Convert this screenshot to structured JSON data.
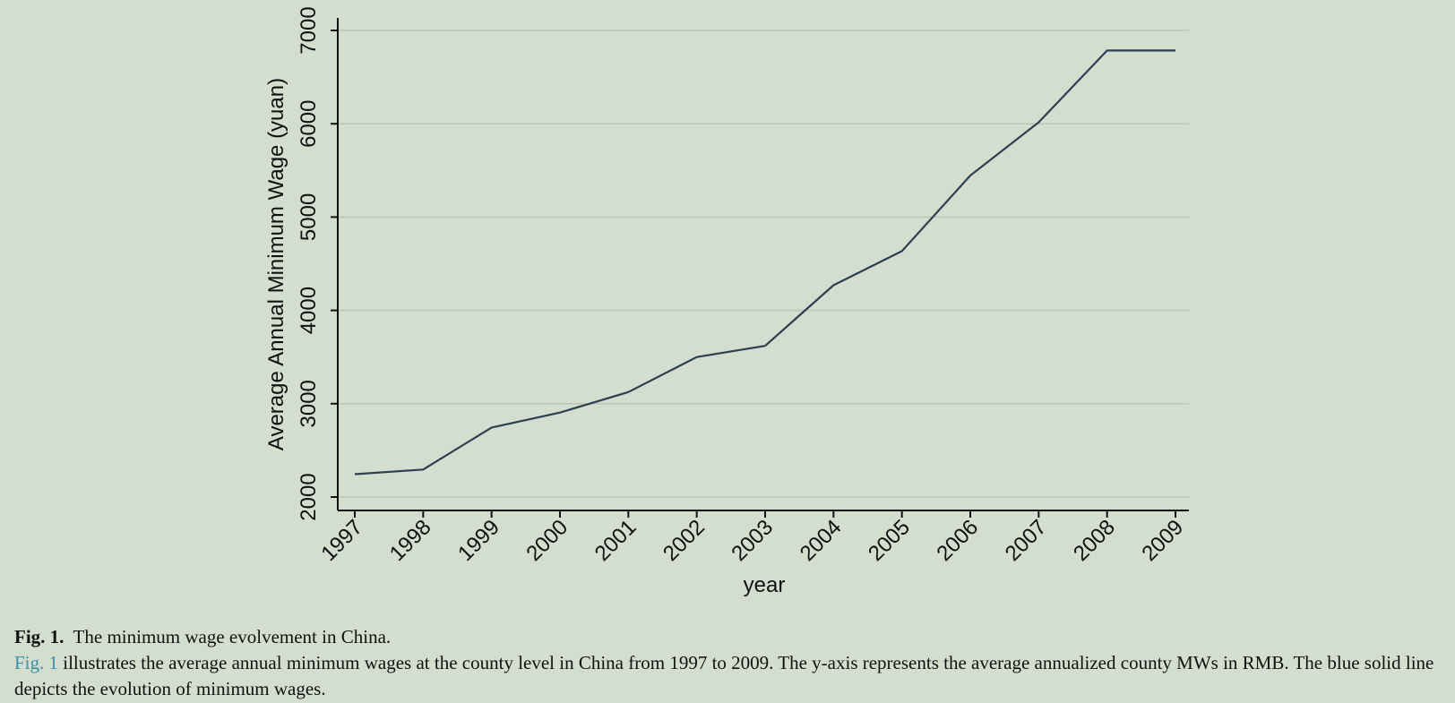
{
  "chart_data": {
    "type": "line",
    "x": [
      1997,
      1998,
      1999,
      2000,
      2001,
      2002,
      2003,
      2004,
      2005,
      2006,
      2007,
      2008,
      2009
    ],
    "series": [
      {
        "values": [
          2245,
          2295,
          2745,
          2905,
          3125,
          3500,
          3620,
          4270,
          4635,
          5445,
          6015,
          6785,
          6785
        ],
        "color": "#2e3f52"
      }
    ],
    "xlabel": "year",
    "ylabel": "Average Annual Minimum Wage (yuan)",
    "xticks": [
      "1997",
      "1998",
      "1999",
      "2000",
      "2001",
      "2002",
      "2003",
      "2004",
      "2005",
      "2006",
      "2007",
      "2008",
      "2009"
    ],
    "yticks": [
      "2000",
      "3000",
      "4000",
      "5000",
      "6000",
      "7000"
    ],
    "ylim": [
      2000,
      7000
    ],
    "xlim": [
      1997,
      2009
    ],
    "grid": true,
    "legend": "none"
  },
  "caption": {
    "label": "Fig. 1.",
    "title": "The minimum wage evolvement in China.",
    "ref": "Fig. 1",
    "text": "illustrates the average annual minimum wages at the county level in China from 1997 to 2009. The y-axis represents the average annualized county MWs in RMB. The blue solid line depicts the evolution of minimum wages."
  }
}
